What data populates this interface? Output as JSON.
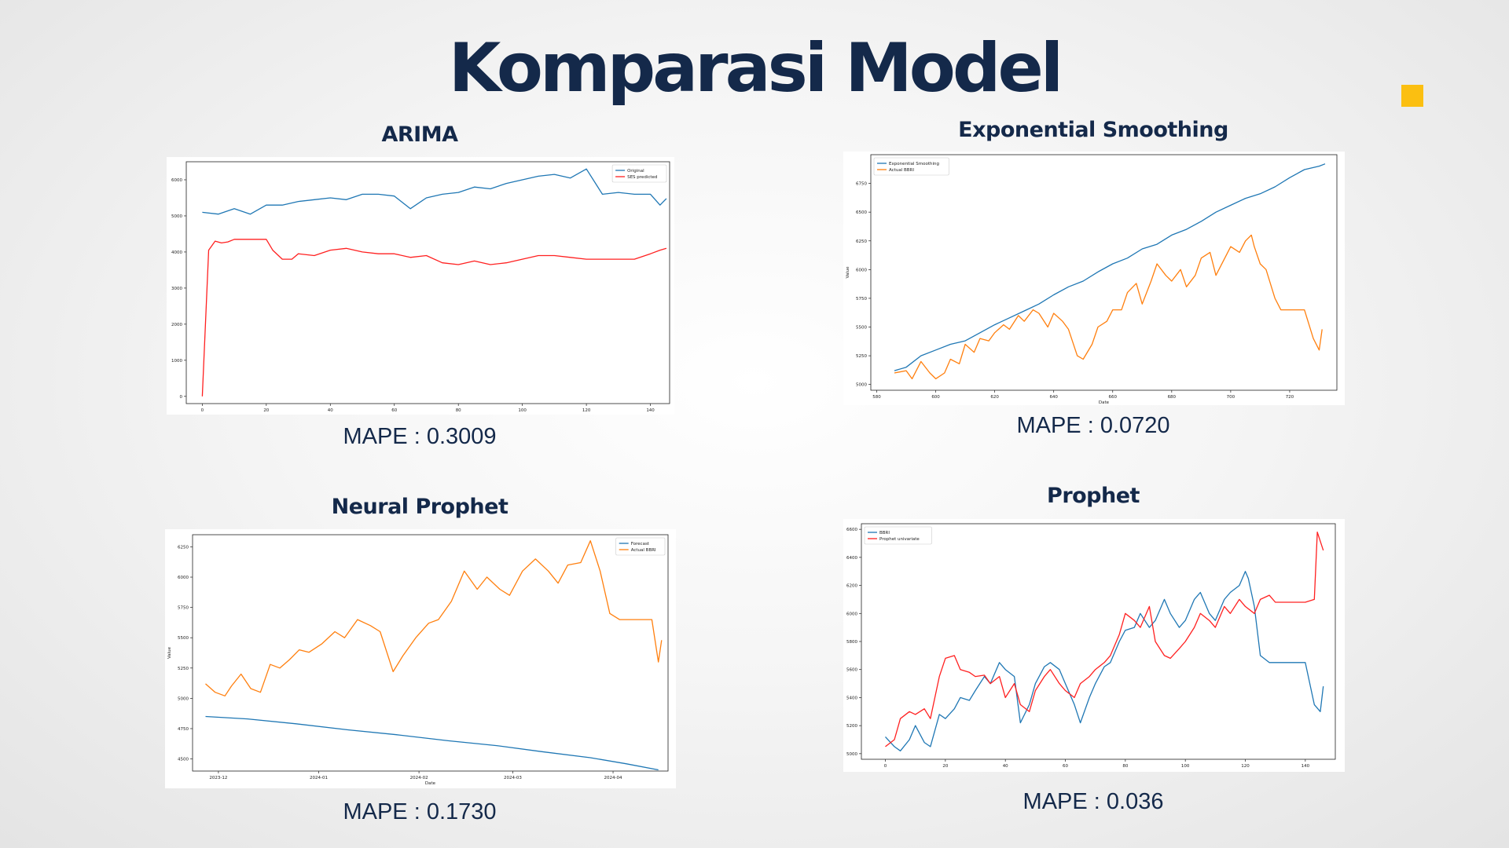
{
  "page": {
    "title": "Komparasi Model",
    "accent_color": "#fbbf11",
    "title_color": "#14294a"
  },
  "panels": [
    {
      "title": "ARIMA",
      "mape": "MAPE : 0.3009"
    },
    {
      "title": "Exponential Smoothing",
      "mape": "MAPE : 0.0720"
    },
    {
      "title": "Neural Prophet",
      "mape": "MAPE : 0.1730"
    },
    {
      "title": "Prophet",
      "mape": "MAPE : 0.036"
    }
  ],
  "chart_data": [
    {
      "type": "line",
      "xlim": [
        -5,
        146
      ],
      "ylim": [
        -200,
        6500
      ],
      "xticks": [
        0,
        20,
        40,
        60,
        80,
        100,
        120,
        140
      ],
      "yticks": [
        0,
        1000,
        2000,
        3000,
        4000,
        5000,
        6000
      ],
      "xlabel": "",
      "ylabel": "",
      "legend_position": "top-right",
      "series": [
        {
          "name": "Original",
          "color": "#1f77b4",
          "x": [
            0,
            5,
            10,
            15,
            20,
            25,
            30,
            35,
            40,
            45,
            50,
            55,
            60,
            65,
            70,
            75,
            80,
            85,
            90,
            95,
            100,
            105,
            110,
            115,
            120,
            125,
            130,
            135,
            140,
            143,
            145
          ],
          "y": [
            5100,
            5050,
            5200,
            5050,
            5300,
            5300,
            5400,
            5450,
            5500,
            5450,
            5600,
            5600,
            5550,
            5200,
            5500,
            5600,
            5650,
            5800,
            5750,
            5900,
            6000,
            6100,
            6150,
            6050,
            6300,
            5600,
            5650,
            5600,
            5600,
            5300,
            5480
          ]
        },
        {
          "name": "SES predicted",
          "color": "#ff2020",
          "x": [
            0,
            2,
            4,
            6,
            8,
            10,
            15,
            20,
            22,
            25,
            28,
            30,
            35,
            40,
            45,
            50,
            55,
            60,
            65,
            70,
            75,
            80,
            85,
            90,
            95,
            100,
            105,
            110,
            115,
            120,
            125,
            130,
            135,
            140,
            143,
            145
          ],
          "y": [
            0,
            4050,
            4300,
            4250,
            4280,
            4350,
            4350,
            4350,
            4050,
            3800,
            3800,
            3950,
            3900,
            4050,
            4100,
            4000,
            3950,
            3950,
            3850,
            3900,
            3700,
            3650,
            3750,
            3650,
            3700,
            3800,
            3900,
            3900,
            3850,
            3800,
            3800,
            3800,
            3800,
            3950,
            4050,
            4100
          ]
        }
      ]
    },
    {
      "type": "line",
      "xlim": [
        578,
        736
      ],
      "ylim": [
        4950,
        7000
      ],
      "xticks": [
        580,
        600,
        620,
        640,
        660,
        680,
        700,
        720
      ],
      "yticks": [
        5000,
        5250,
        5500,
        5750,
        6000,
        6250,
        6500,
        6750
      ],
      "xlabel": "Date",
      "ylabel": "Value",
      "legend_position": "top-left",
      "series": [
        {
          "name": "Exponential Smoothing",
          "color": "#1f77b4",
          "x": [
            586,
            590,
            595,
            600,
            605,
            610,
            615,
            620,
            625,
            630,
            635,
            640,
            645,
            650,
            655,
            660,
            665,
            670,
            675,
            680,
            685,
            690,
            695,
            700,
            705,
            710,
            715,
            720,
            725,
            730,
            732
          ],
          "y": [
            5120,
            5150,
            5250,
            5300,
            5350,
            5380,
            5450,
            5520,
            5580,
            5640,
            5700,
            5780,
            5850,
            5900,
            5980,
            6050,
            6100,
            6180,
            6220,
            6300,
            6350,
            6420,
            6500,
            6560,
            6620,
            6660,
            6720,
            6800,
            6870,
            6900,
            6920
          ]
        },
        {
          "name": "Actual BBRI",
          "color": "#ff7f0e",
          "x": [
            586,
            590,
            592,
            595,
            598,
            600,
            603,
            605,
            608,
            610,
            613,
            615,
            618,
            620,
            623,
            625,
            628,
            630,
            633,
            635,
            638,
            640,
            643,
            645,
            648,
            650,
            653,
            655,
            658,
            660,
            663,
            665,
            668,
            670,
            673,
            675,
            678,
            680,
            683,
            685,
            688,
            690,
            693,
            695,
            698,
            700,
            703,
            705,
            707,
            708,
            710,
            712,
            715,
            717,
            720,
            723,
            725,
            728,
            730,
            731
          ],
          "y": [
            5100,
            5120,
            5050,
            5200,
            5100,
            5050,
            5100,
            5220,
            5180,
            5350,
            5280,
            5400,
            5380,
            5450,
            5520,
            5480,
            5600,
            5550,
            5650,
            5620,
            5500,
            5620,
            5550,
            5480,
            5250,
            5220,
            5350,
            5500,
            5550,
            5650,
            5650,
            5800,
            5880,
            5700,
            5900,
            6050,
            5950,
            5900,
            6000,
            5850,
            5950,
            6100,
            6150,
            5950,
            6100,
            6200,
            6150,
            6250,
            6300,
            6200,
            6050,
            6000,
            5750,
            5650,
            5650,
            5650,
            5650,
            5400,
            5300,
            5480
          ]
        }
      ]
    },
    {
      "type": "line",
      "x_type": "date",
      "xlim": [
        "2023-11-23",
        "2024-04-18"
      ],
      "ylim": [
        4400,
        6350
      ],
      "xticks": [
        "2023-12-01",
        "2024-01-01",
        "2024-02-01",
        "2024-03-01",
        "2024-04-01"
      ],
      "xtick_labels": [
        "2023-12",
        "2024-01",
        "2024-02",
        "2024-03",
        "2024-04"
      ],
      "yticks": [
        4500,
        4750,
        5000,
        5250,
        5500,
        5750,
        6000,
        6250
      ],
      "xlabel": "Date",
      "ylabel": "Value",
      "legend_position": "top-right",
      "series": [
        {
          "name": "Forecast",
          "color": "#1f77b4",
          "x": [
            "2023-11-27",
            "2023-12-10",
            "2023-12-25",
            "2024-01-10",
            "2024-01-25",
            "2024-02-10",
            "2024-02-25",
            "2024-03-10",
            "2024-03-25",
            "2024-04-05",
            "2024-04-15"
          ],
          "y": [
            4850,
            4830,
            4790,
            4740,
            4700,
            4650,
            4610,
            4560,
            4510,
            4460,
            4410
          ]
        },
        {
          "name": "Actual BBRI",
          "color": "#ff7f0e",
          "x": [
            "2023-11-27",
            "2023-11-30",
            "2023-12-03",
            "2023-12-05",
            "2023-12-08",
            "2023-12-11",
            "2023-12-14",
            "2023-12-17",
            "2023-12-20",
            "2023-12-23",
            "2023-12-26",
            "2023-12-29",
            "2024-01-02",
            "2024-01-06",
            "2024-01-09",
            "2024-01-13",
            "2024-01-17",
            "2024-01-20",
            "2024-01-24",
            "2024-01-27",
            "2024-01-31",
            "2024-02-04",
            "2024-02-07",
            "2024-02-11",
            "2024-02-15",
            "2024-02-19",
            "2024-02-22",
            "2024-02-26",
            "2024-02-29",
            "2024-03-04",
            "2024-03-08",
            "2024-03-12",
            "2024-03-15",
            "2024-03-18",
            "2024-03-22",
            "2024-03-25",
            "2024-03-28",
            "2024-03-31",
            "2024-04-03",
            "2024-04-06",
            "2024-04-10",
            "2024-04-13",
            "2024-04-15",
            "2024-04-16"
          ],
          "y": [
            5120,
            5050,
            5020,
            5100,
            5200,
            5080,
            5050,
            5280,
            5250,
            5320,
            5400,
            5380,
            5450,
            5550,
            5500,
            5650,
            5600,
            5550,
            5220,
            5350,
            5500,
            5620,
            5650,
            5800,
            6050,
            5900,
            6000,
            5900,
            5850,
            6050,
            6150,
            6050,
            5950,
            6100,
            6120,
            6300,
            6050,
            5700,
            5650,
            5650,
            5650,
            5650,
            5300,
            5480
          ]
        }
      ]
    },
    {
      "type": "line",
      "xlim": [
        -8,
        150
      ],
      "ylim": [
        4960,
        6640
      ],
      "xticks": [
        0,
        20,
        40,
        60,
        80,
        100,
        120,
        140
      ],
      "yticks": [
        5000,
        5200,
        5400,
        5600,
        5800,
        6000,
        6200,
        6400,
        6600
      ],
      "xlabel": "",
      "ylabel": "",
      "legend_position": "top-left",
      "series": [
        {
          "name": "BBRI",
          "color": "#1f77b4",
          "x": [
            0,
            3,
            5,
            8,
            10,
            13,
            15,
            18,
            20,
            23,
            25,
            28,
            30,
            33,
            35,
            38,
            40,
            43,
            45,
            48,
            50,
            53,
            55,
            58,
            60,
            63,
            65,
            68,
            70,
            73,
            75,
            78,
            80,
            83,
            85,
            88,
            90,
            93,
            95,
            98,
            100,
            103,
            105,
            108,
            110,
            113,
            115,
            118,
            120,
            121,
            123,
            125,
            128,
            130,
            133,
            135,
            138,
            140,
            143,
            145,
            146
          ],
          "y": [
            5120,
            5050,
            5020,
            5100,
            5200,
            5080,
            5050,
            5280,
            5250,
            5320,
            5400,
            5380,
            5450,
            5550,
            5500,
            5650,
            5600,
            5550,
            5220,
            5350,
            5500,
            5620,
            5650,
            5600,
            5500,
            5350,
            5220,
            5400,
            5500,
            5620,
            5650,
            5800,
            5880,
            5900,
            6000,
            5900,
            5950,
            6100,
            6000,
            5900,
            5950,
            6100,
            6150,
            6000,
            5950,
            6100,
            6150,
            6200,
            6300,
            6250,
            6050,
            5700,
            5650,
            5650,
            5650,
            5650,
            5650,
            5650,
            5350,
            5300,
            5480
          ]
        },
        {
          "name": "Prophet univariate",
          "color": "#ff2020",
          "x": [
            0,
            3,
            5,
            8,
            10,
            13,
            15,
            18,
            20,
            23,
            25,
            28,
            30,
            33,
            35,
            38,
            40,
            43,
            45,
            48,
            50,
            53,
            55,
            58,
            60,
            63,
            65,
            68,
            70,
            73,
            75,
            78,
            80,
            83,
            85,
            88,
            90,
            93,
            95,
            98,
            100,
            103,
            105,
            108,
            110,
            113,
            115,
            118,
            120,
            123,
            125,
            128,
            130,
            135,
            140,
            143,
            144,
            146
          ],
          "y": [
            5050,
            5100,
            5250,
            5300,
            5280,
            5320,
            5250,
            5550,
            5680,
            5700,
            5600,
            5580,
            5550,
            5560,
            5500,
            5550,
            5400,
            5500,
            5350,
            5300,
            5450,
            5550,
            5600,
            5500,
            5450,
            5400,
            5500,
            5550,
            5600,
            5650,
            5700,
            5850,
            6000,
            5950,
            5900,
            6050,
            5800,
            5700,
            5680,
            5750,
            5800,
            5900,
            6000,
            5950,
            5900,
            6050,
            6000,
            6100,
            6050,
            6000,
            6100,
            6130,
            6080,
            6080,
            6080,
            6100,
            6580,
            6450
          ]
        }
      ]
    }
  ]
}
